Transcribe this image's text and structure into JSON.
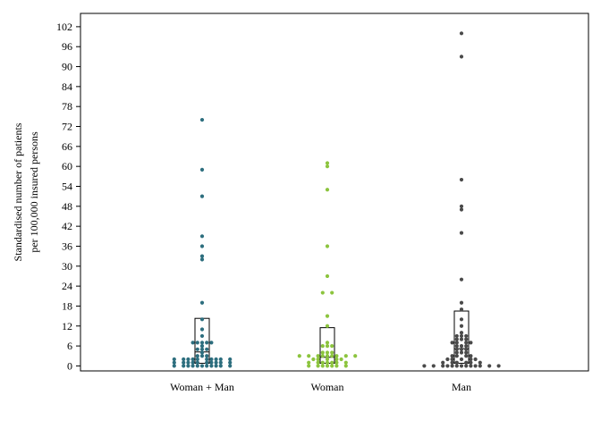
{
  "chart_data": {
    "type": "scatter",
    "xlabel": "",
    "ylabel_lines": [
      "Standardised number of patients",
      "per 100,000 insured persons"
    ],
    "ylim": [
      -1.5,
      106
    ],
    "yticks": [
      0,
      6,
      12,
      18,
      24,
      30,
      36,
      42,
      48,
      54,
      60,
      66,
      72,
      78,
      84,
      90,
      96,
      102
    ],
    "categories": [
      "Woman + Man",
      "Woman",
      "Man"
    ],
    "grid": false,
    "series": [
      {
        "category": "Woman + Man",
        "color": "#2d6e7e",
        "box": {
          "low": 0.8,
          "median": 4.2,
          "high": 14.3
        },
        "points": [
          [
            -6,
            0
          ],
          [
            -4,
            0
          ],
          [
            -3,
            0
          ],
          [
            -2,
            0
          ],
          [
            -1,
            0
          ],
          [
            0,
            0
          ],
          [
            1,
            0
          ],
          [
            2,
            0
          ],
          [
            3,
            0
          ],
          [
            4,
            0
          ],
          [
            6,
            0
          ],
          [
            -6,
            1
          ],
          [
            -4,
            1
          ],
          [
            -3,
            1
          ],
          [
            -2,
            1
          ],
          [
            -1,
            1
          ],
          [
            1,
            1
          ],
          [
            2,
            1
          ],
          [
            3,
            1
          ],
          [
            4,
            1
          ],
          [
            6,
            1
          ],
          [
            -6,
            2
          ],
          [
            -4,
            2
          ],
          [
            -3,
            2
          ],
          [
            -2,
            2
          ],
          [
            -1,
            2
          ],
          [
            1,
            2
          ],
          [
            2,
            2
          ],
          [
            3,
            2
          ],
          [
            4,
            2
          ],
          [
            6,
            2
          ],
          [
            -1,
            3
          ],
          [
            0,
            3
          ],
          [
            1,
            3
          ],
          [
            0,
            4
          ],
          [
            -1,
            5
          ],
          [
            0,
            5
          ],
          [
            1,
            5
          ],
          [
            0,
            6
          ],
          [
            -2,
            7
          ],
          [
            -1,
            7
          ],
          [
            0,
            7
          ],
          [
            1,
            7
          ],
          [
            2,
            7
          ],
          [
            0,
            9
          ],
          [
            0,
            11
          ],
          [
            0,
            14
          ],
          [
            0,
            19
          ],
          [
            0,
            32
          ],
          [
            0,
            33
          ],
          [
            0,
            36
          ],
          [
            0,
            39
          ],
          [
            0,
            51
          ],
          [
            0,
            59
          ],
          [
            0,
            74
          ]
        ]
      },
      {
        "category": "Woman",
        "color": "#8cc43e",
        "box": {
          "low": 0.8,
          "median": 2.6,
          "high": 11.5
        },
        "points": [
          [
            -4,
            0
          ],
          [
            -2,
            0
          ],
          [
            -1,
            0
          ],
          [
            0,
            0
          ],
          [
            1,
            0
          ],
          [
            2,
            0
          ],
          [
            4,
            0
          ],
          [
            -4,
            1
          ],
          [
            -2,
            1
          ],
          [
            -1,
            1
          ],
          [
            0,
            1
          ],
          [
            1,
            1
          ],
          [
            2,
            1
          ],
          [
            4,
            1
          ],
          [
            -3,
            2
          ],
          [
            -2,
            2
          ],
          [
            0,
            2
          ],
          [
            2,
            2
          ],
          [
            3,
            2
          ],
          [
            -6,
            3
          ],
          [
            -4,
            3
          ],
          [
            -2,
            3
          ],
          [
            -1,
            3
          ],
          [
            0,
            3
          ],
          [
            1,
            3
          ],
          [
            2,
            3
          ],
          [
            4,
            3
          ],
          [
            6,
            3
          ],
          [
            -1,
            4
          ],
          [
            0,
            4
          ],
          [
            1,
            4
          ],
          [
            -1,
            6
          ],
          [
            0,
            6
          ],
          [
            1,
            6
          ],
          [
            0,
            7
          ],
          [
            0,
            12
          ],
          [
            0,
            15
          ],
          [
            -1,
            22
          ],
          [
            1,
            22
          ],
          [
            0,
            27
          ],
          [
            0,
            36
          ],
          [
            0,
            53
          ],
          [
            0,
            60
          ],
          [
            0,
            61
          ]
        ]
      },
      {
        "category": "Man",
        "color": "#4a4a4a",
        "box": {
          "low": 0.8,
          "median": 5.2,
          "high": 16.5
        },
        "points": [
          [
            -8,
            0
          ],
          [
            -6,
            0
          ],
          [
            -4,
            0
          ],
          [
            -3,
            0
          ],
          [
            -2,
            0
          ],
          [
            -1,
            0
          ],
          [
            0,
            0
          ],
          [
            1,
            0
          ],
          [
            2,
            0
          ],
          [
            3,
            0
          ],
          [
            4,
            0
          ],
          [
            6,
            0
          ],
          [
            8,
            0
          ],
          [
            -4,
            1
          ],
          [
            -2,
            1
          ],
          [
            -1,
            1
          ],
          [
            1,
            1
          ],
          [
            2,
            1
          ],
          [
            4,
            1
          ],
          [
            -3,
            2
          ],
          [
            -2,
            2
          ],
          [
            0,
            2
          ],
          [
            2,
            2
          ],
          [
            3,
            2
          ],
          [
            -2,
            3
          ],
          [
            -1,
            3
          ],
          [
            1,
            3
          ],
          [
            2,
            3
          ],
          [
            -1,
            4
          ],
          [
            0,
            4
          ],
          [
            1,
            4
          ],
          [
            -1,
            5
          ],
          [
            0,
            5
          ],
          [
            1,
            5
          ],
          [
            -1,
            6
          ],
          [
            0,
            6
          ],
          [
            1,
            6
          ],
          [
            -2,
            7
          ],
          [
            -1,
            7
          ],
          [
            1,
            7
          ],
          [
            2,
            7
          ],
          [
            -1,
            8
          ],
          [
            0,
            8
          ],
          [
            1,
            8
          ],
          [
            -1,
            9
          ],
          [
            0,
            9
          ],
          [
            1,
            9
          ],
          [
            0,
            10
          ],
          [
            0,
            12
          ],
          [
            0,
            14
          ],
          [
            0,
            17
          ],
          [
            0,
            19
          ],
          [
            0,
            26
          ],
          [
            0,
            40
          ],
          [
            0,
            47
          ],
          [
            0,
            48
          ],
          [
            0,
            56
          ],
          [
            0,
            93
          ],
          [
            0,
            100
          ]
        ]
      }
    ]
  }
}
